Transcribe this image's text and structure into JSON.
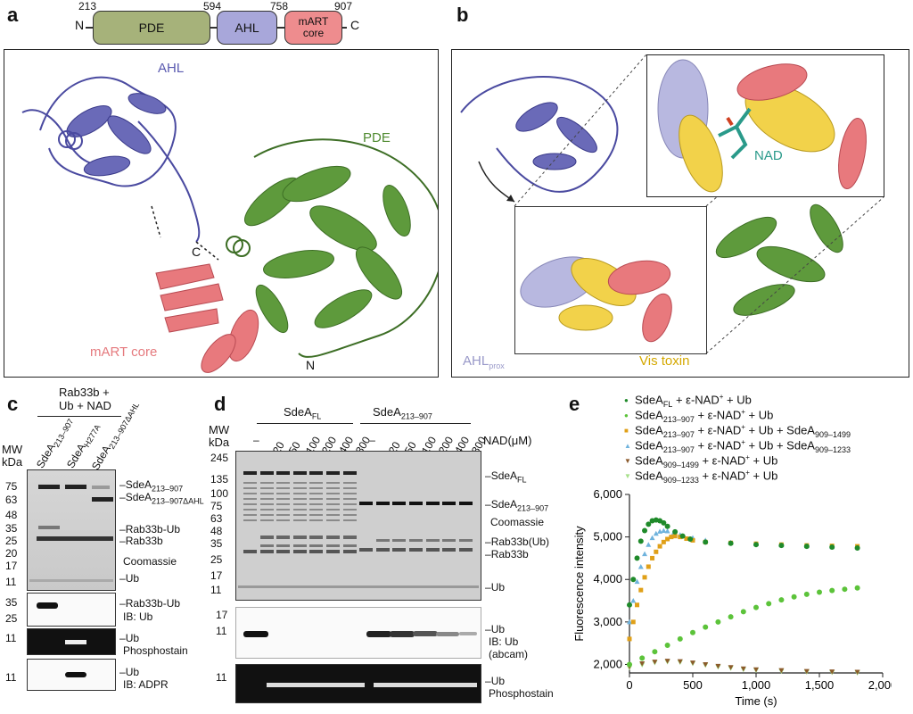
{
  "panels": {
    "a": "a",
    "b": "b",
    "c": "c",
    "d": "d",
    "e": "e"
  },
  "domain_bar": {
    "n": "N",
    "c": "C",
    "n213": "213",
    "n594": "594",
    "n758": "758",
    "n907": "907",
    "pde": "PDE",
    "ahl": "AHL",
    "mart1": "mART",
    "mart2": "core"
  },
  "panel_a": {
    "ahl": "AHL",
    "pde": "PDE",
    "mart": "mART core",
    "c": "C",
    "n": "N"
  },
  "panel_b": {
    "nad": "NAD",
    "ahl_prox": "AHL",
    "ahl_prox_sub": "prox",
    "vis": "Vis toxin"
  },
  "panel_c": {
    "header1": "Rab33b +",
    "header2": "Ub + NAD",
    "lane1": "SdeA",
    "lane1_sub": "213–907",
    "lane2": "SdeA",
    "lane2_sub": "H277A",
    "lane3": "SdeA",
    "lane3_sub": "213–907ΔAHL",
    "mw": "MW",
    "kda": "kDa",
    "markers": [
      "75",
      "63",
      "48",
      "35",
      "25",
      "20",
      "17",
      "11"
    ],
    "r1": "SdeA",
    "r1_sub": "213–907",
    "r2": "SdeA",
    "r2_sub": "213–907ΔAHL",
    "r3": "Rab33b-Ub",
    "r4": "Rab33b",
    "r5": "Coomassie",
    "r6": "Ub",
    "blot1_markers": [
      "35",
      "25"
    ],
    "blot1_label": "Rab33b-Ub",
    "blot1_ib": "IB: Ub",
    "blot2_marker": "11",
    "blot2_label": "Ub",
    "blot2_ib": "Phosphostain",
    "blot3_marker": "11",
    "blot3_label": "Ub",
    "blot3_ib": "IB: ADPR"
  },
  "panel_d": {
    "g1": "SdeA",
    "g1_sub": "FL",
    "g2": "SdeA",
    "g2_sub": "213–907",
    "nad_label": "NAD(μM)",
    "lanes": [
      "–",
      "20",
      "50",
      "100",
      "200",
      "400",
      "800",
      "–",
      "20",
      "50",
      "100",
      "200",
      "400",
      "800"
    ],
    "mw": "MW",
    "kda": "kDa",
    "markers": [
      "245",
      "135",
      "100",
      "75",
      "63",
      "48",
      "35",
      "25",
      "17",
      "11"
    ],
    "r1": "SdeA",
    "r1_sub": "FL",
    "r2": "SdeA",
    "r2_sub": "213–907",
    "r3": "Coomassie",
    "r4": "Rab33b(Ub)",
    "r5": "Rab33b",
    "r6": "Ub",
    "blot1_markers": [
      "17",
      "11"
    ],
    "blot1_label": "Ub",
    "blot1_ib1": "IB: Ub",
    "blot1_ib2": "(abcam)",
    "blot2_marker": "11",
    "blot2_label": "Ub",
    "blot2_ib": "Phosphostain"
  },
  "chart_data": {
    "type": "scatter",
    "xlabel": "Time (s)",
    "ylabel": "Fluorescence intensity",
    "xlim": [
      0,
      2000
    ],
    "ylim": [
      1800,
      6000
    ],
    "xticks": [
      "0",
      "500",
      "1,000",
      "1,500",
      "2,000"
    ],
    "yticks": [
      "2,000",
      "3,000",
      "4,000",
      "5,000",
      "6,000"
    ],
    "legend_position": "top",
    "series": [
      {
        "name": "SdeAFL + ε-NAD+ + Ub",
        "legend_main": "SdeA",
        "legend_sub": "FL",
        "legend_rest": " + ε-NAD",
        "legend_sup": "+",
        "legend_tail": " + Ub",
        "color": "#1f8a2a",
        "marker": "circle",
        "x": [
          0,
          30,
          60,
          90,
          120,
          150,
          180,
          210,
          240,
          270,
          300,
          360,
          420,
          480,
          600,
          800,
          1000,
          1200,
          1400,
          1600,
          1800
        ],
        "y": [
          3400,
          4000,
          4500,
          4900,
          5150,
          5300,
          5380,
          5400,
          5380,
          5330,
          5250,
          5120,
          5020,
          4950,
          4880,
          4850,
          4820,
          4800,
          4780,
          4760,
          4740
        ]
      },
      {
        "name": "SdeA213–907 + ε-NAD+ + Ub",
        "legend_main": "SdeA",
        "legend_sub": "213–907",
        "legend_rest": " + ε-NAD",
        "legend_sup": "+",
        "legend_tail": " + Ub",
        "color": "#5cc33a",
        "marker": "circle",
        "x": [
          0,
          100,
          200,
          300,
          400,
          500,
          600,
          700,
          800,
          900,
          1000,
          1100,
          1200,
          1300,
          1400,
          1500,
          1600,
          1700,
          1800
        ],
        "y": [
          2000,
          2150,
          2300,
          2450,
          2600,
          2750,
          2880,
          3000,
          3120,
          3240,
          3340,
          3430,
          3520,
          3590,
          3650,
          3700,
          3740,
          3770,
          3800
        ]
      },
      {
        "name": "SdeA213–907 + ε-NAD+ + Ub + SdeA909–1499",
        "legend_main": "SdeA",
        "legend_sub": "213–907",
        "legend_rest": " + ε-NAD",
        "legend_sup": "+",
        "legend_tail": " + Ub + SdeA",
        "legend_sub2": "909–1499",
        "color": "#e0a018",
        "marker": "square",
        "x": [
          0,
          30,
          60,
          90,
          120,
          150,
          180,
          210,
          240,
          270,
          300,
          330,
          360,
          400,
          450,
          500,
          600,
          800,
          1000,
          1200,
          1400,
          1600,
          1800
        ],
        "y": [
          2600,
          3000,
          3400,
          3750,
          4050,
          4300,
          4500,
          4650,
          4780,
          4880,
          4950,
          5000,
          5020,
          5000,
          4960,
          4920,
          4880,
          4860,
          4840,
          4820,
          4800,
          4790,
          4780
        ]
      },
      {
        "name": "SdeA213–907 + ε-NAD+ + Ub + SdeA909–1233",
        "legend_main": "SdeA",
        "legend_sub": "213–907",
        "legend_rest": " + ε-NAD",
        "legend_sup": "+",
        "legend_tail": " + Ub + SdeA",
        "legend_sub2": "909–1233",
        "color": "#6fb3dd",
        "marker": "triangle",
        "x": [
          0,
          30,
          60,
          90,
          120,
          150,
          180,
          210,
          240,
          270,
          300,
          350,
          400,
          500,
          600,
          800,
          1000,
          1200,
          1400,
          1600,
          1800
        ],
        "y": [
          3000,
          3500,
          3950,
          4300,
          4600,
          4820,
          4980,
          5080,
          5130,
          5150,
          5140,
          5100,
          5050,
          4980,
          4920,
          4870,
          4840,
          4810,
          4790,
          4770,
          4760
        ]
      },
      {
        "name": "SdeA909–1499 + ε-NAD+ + Ub",
        "legend_main": "SdeA",
        "legend_sub": "909–1499",
        "legend_rest": " + ε-NAD",
        "legend_sup": "+",
        "legend_tail": " + Ub",
        "color": "#8b5a2b",
        "marker": "triangle-down",
        "x": [
          0,
          100,
          200,
          300,
          400,
          500,
          600,
          700,
          800,
          900,
          1000,
          1200,
          1400,
          1600,
          1800
        ],
        "y": [
          1950,
          2020,
          2060,
          2080,
          2070,
          2040,
          2000,
          1960,
          1930,
          1900,
          1880,
          1860,
          1840,
          1830,
          1820
        ]
      },
      {
        "name": "SdeA909–1233 + ε-NAD+ + Ub",
        "legend_main": "SdeA",
        "legend_sub": "909–1233",
        "legend_rest": " + ε-NAD",
        "legend_sup": "+",
        "legend_tail": " + Ub",
        "color": "#a7e08a",
        "marker": "triangle-down",
        "x": [
          0,
          100,
          200,
          300,
          400,
          500,
          600,
          700,
          800,
          900,
          1000,
          1200,
          1400,
          1600,
          1800
        ],
        "y": [
          1920,
          1990,
          2040,
          2060,
          2050,
          2020,
          1980,
          1940,
          1910,
          1880,
          1860,
          1840,
          1820,
          1810,
          1800
        ]
      }
    ]
  }
}
